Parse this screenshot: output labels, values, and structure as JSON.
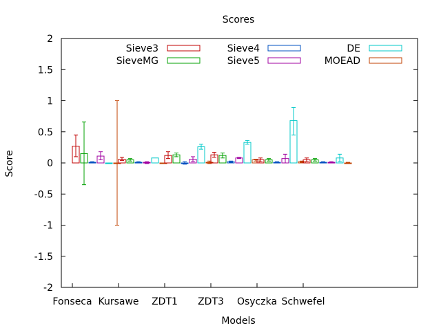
{
  "chart_data": {
    "type": "bar",
    "title": "Scores",
    "xlabel": "Models",
    "ylabel": "Score",
    "ylim": [
      -2,
      2
    ],
    "yticks": [
      -2,
      -1.5,
      -1,
      -0.5,
      0,
      0.5,
      1,
      1.5,
      2
    ],
    "ytick_labels": [
      "-2",
      "-1.5",
      "-1",
      "-0.5",
      "0",
      "0.5",
      "1",
      "1.5",
      "2"
    ],
    "categories": [
      "Fonseca",
      "Kursawe",
      "ZDT1",
      "ZDT3",
      "Osyczka",
      "Schwefel"
    ],
    "grid": false,
    "legend_position": "top-right",
    "series": [
      {
        "name": "Sieve3",
        "color": "#c00000",
        "values": [
          0.27,
          0.06,
          0.12,
          0.13,
          0.05,
          0.05
        ],
        "err_low": [
          0.1,
          0.04,
          0.07,
          0.09,
          0.02,
          0.02
        ],
        "err_high": [
          0.45,
          0.09,
          0.18,
          0.17,
          0.08,
          0.08
        ]
      },
      {
        "name": "SieveMG",
        "color": "#00a000",
        "values": [
          0.15,
          0.05,
          0.13,
          0.12,
          0.05,
          0.05
        ],
        "err_low": [
          -0.35,
          0.03,
          0.1,
          0.08,
          0.03,
          0.03
        ],
        "err_high": [
          0.66,
          0.07,
          0.16,
          0.16,
          0.07,
          0.07
        ]
      },
      {
        "name": "Sieve4",
        "color": "#0050c0",
        "values": [
          0.01,
          0.01,
          0.0,
          0.02,
          0.01,
          0.01
        ],
        "err_low": [
          0.0,
          0.0,
          -0.02,
          0.01,
          0.0,
          0.0
        ],
        "err_high": [
          0.02,
          0.02,
          0.02,
          0.03,
          0.02,
          0.02
        ]
      },
      {
        "name": "Sieve5",
        "color": "#a000a0",
        "values": [
          0.11,
          0.01,
          0.06,
          0.08,
          0.07,
          0.01
        ],
        "err_low": [
          0.05,
          -0.01,
          0.02,
          0.07,
          0.0,
          0.0
        ],
        "err_high": [
          0.18,
          0.02,
          0.1,
          0.09,
          0.14,
          0.02
        ]
      },
      {
        "name": "DE",
        "color": "#00c8c8",
        "values": [
          0.0,
          0.08,
          0.26,
          0.33,
          0.68,
          0.08
        ],
        "err_low": [
          0.0,
          0.08,
          0.22,
          0.3,
          0.45,
          0.02
        ],
        "err_high": [
          0.0,
          0.08,
          0.3,
          0.36,
          0.89,
          0.14
        ]
      },
      {
        "name": "MOEAD",
        "color": "#c04000",
        "values": [
          0.0,
          0.0,
          0.01,
          0.05,
          0.02,
          0.0
        ],
        "err_low": [
          -1.0,
          0.0,
          -0.01,
          0.03,
          0.01,
          -0.01
        ],
        "err_high": [
          1.0,
          0.0,
          0.03,
          0.06,
          0.03,
          0.01
        ]
      }
    ]
  }
}
